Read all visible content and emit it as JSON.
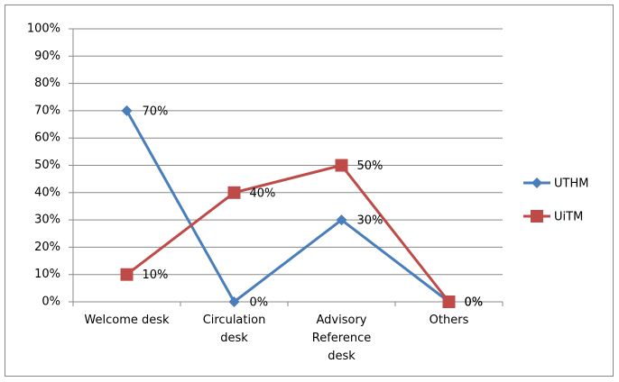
{
  "chart_data": {
    "type": "line",
    "categories": [
      "Welcome desk",
      "Circulation desk",
      "Advisory Reference desk",
      "Others"
    ],
    "series": [
      {
        "name": "UTHM",
        "color": "#4a7ebb",
        "marker": "diamond",
        "values": [
          70,
          0,
          30,
          0
        ],
        "value_labels": [
          "70%",
          "0%",
          "30%",
          "0%"
        ]
      },
      {
        "name": "UiTM",
        "color": "#be4b48",
        "marker": "square",
        "values": [
          10,
          40,
          50,
          0
        ],
        "value_labels": [
          "10%",
          "40%",
          "50%",
          "0%"
        ]
      }
    ],
    "ylim": [
      0,
      100
    ],
    "yticks": [
      {
        "value": 0,
        "label": "0%"
      },
      {
        "value": 10,
        "label": "10%"
      },
      {
        "value": 20,
        "label": "20%"
      },
      {
        "value": 30,
        "label": "30%"
      },
      {
        "value": 40,
        "label": "40%"
      },
      {
        "value": 50,
        "label": "50%"
      },
      {
        "value": 60,
        "label": "60%"
      },
      {
        "value": 70,
        "label": "70%"
      },
      {
        "value": 80,
        "label": "80%"
      },
      {
        "value": 90,
        "label": "90%"
      },
      {
        "value": 100,
        "label": "100%"
      }
    ],
    "grid": true,
    "legend": "right"
  }
}
